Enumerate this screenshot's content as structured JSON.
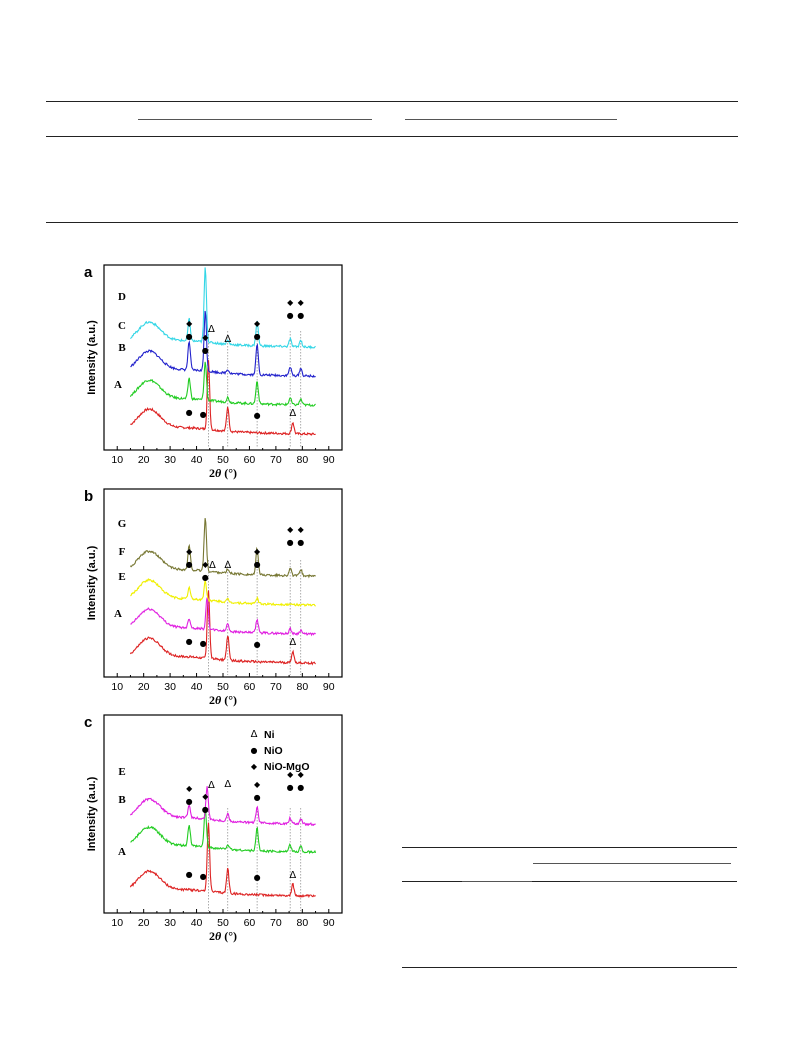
{
  "axis": {
    "ylabel": "Intensity (a.u.)",
    "xlabel_prefix": "2",
    "xlabel_theta": "θ",
    "xlabel_suffix": " (°)",
    "xticks": [
      "10",
      "20",
      "30",
      "40",
      "50",
      "60",
      "70",
      "80",
      "90"
    ]
  },
  "markers": {
    "ni": "Δ",
    "nio": "●",
    "niomgo": "◆"
  },
  "legend": {
    "ni": "Ni",
    "nio": "NiO",
    "niomgo": "NiO-MgO"
  },
  "colors": {
    "cyan": "#33d6e6",
    "blue": "#2222cc",
    "green": "#22cc22",
    "red": "#dd2222",
    "olive": "#777733",
    "yellow": "#f0f000",
    "magenta": "#e020e0"
  },
  "chart_data": [
    {
      "type": "line",
      "panel_label": "a",
      "xlabel": "2θ (°)",
      "ylabel": "Intensity (a.u.)",
      "xlim": [
        5,
        95
      ],
      "reference_lines_x": [
        44.5,
        51.8,
        62.9,
        75.4,
        79.4
      ],
      "series": [
        {
          "name": "A",
          "color": "#dd2222",
          "offset": 0,
          "peaks": [
            [
              44.5,
              7.2
            ],
            [
              51.8,
              2.6
            ],
            [
              76.4,
              1.2
            ]
          ]
        },
        {
          "name": "B",
          "color": "#22cc22",
          "offset": 1,
          "peaks": [
            [
              37.2,
              2.2
            ],
            [
              43.3,
              4.0
            ],
            [
              51.8,
              0.5
            ],
            [
              62.9,
              2.4
            ],
            [
              75.4,
              0.7
            ],
            [
              79.4,
              0.6
            ]
          ]
        },
        {
          "name": "C",
          "color": "#2222cc",
          "offset": 2,
          "peaks": [
            [
              37.2,
              3.0
            ],
            [
              43.3,
              6.4
            ],
            [
              51.8,
              0.4
            ],
            [
              62.9,
              3.2
            ],
            [
              75.4,
              0.9
            ],
            [
              79.4,
              0.8
            ]
          ]
        },
        {
          "name": "D",
          "color": "#33d6e6",
          "offset": 3,
          "peaks": [
            [
              37.2,
              2.3
            ],
            [
              43.3,
              7.8
            ],
            [
              51.8,
              0.4
            ],
            [
              62.9,
              2.6
            ],
            [
              75.4,
              0.8
            ],
            [
              79.4,
              0.7
            ]
          ]
        }
      ]
    },
    {
      "type": "line",
      "panel_label": "b",
      "xlabel": "2θ (°)",
      "ylabel": "Intensity (a.u.)",
      "xlim": [
        5,
        95
      ],
      "reference_lines_x": [
        44.5,
        51.8,
        62.9,
        75.4,
        79.4
      ],
      "series": [
        {
          "name": "A",
          "color": "#dd2222",
          "offset": 0,
          "peaks": [
            [
              44.5,
              7.2
            ],
            [
              51.8,
              2.6
            ],
            [
              76.4,
              1.2
            ]
          ]
        },
        {
          "name": "E",
          "color": "#e020e0",
          "offset": 1,
          "peaks": [
            [
              37.2,
              1.0
            ],
            [
              44.0,
              3.4
            ],
            [
              51.8,
              0.8
            ],
            [
              62.9,
              1.4
            ],
            [
              75.4,
              0.5
            ],
            [
              79.4,
              0.4
            ]
          ]
        },
        {
          "name": "F",
          "color": "#f0f000",
          "offset": 2,
          "peaks": [
            [
              37.2,
              1.2
            ],
            [
              43.3,
              2.0
            ],
            [
              51.8,
              0.3
            ],
            [
              62.9,
              0.6
            ]
          ]
        },
        {
          "name": "G",
          "color": "#777733",
          "offset": 3,
          "peaks": [
            [
              37.2,
              2.6
            ],
            [
              43.3,
              5.6
            ],
            [
              51.8,
              0.4
            ],
            [
              62.9,
              2.8
            ],
            [
              75.4,
              0.8
            ],
            [
              79.4,
              0.7
            ]
          ]
        }
      ]
    },
    {
      "type": "line",
      "panel_label": "c",
      "xlabel": "2θ (°)",
      "ylabel": "Intensity (a.u.)",
      "xlim": [
        5,
        95
      ],
      "reference_lines_x": [
        44.5,
        51.8,
        62.9,
        75.4,
        79.4
      ],
      "legend": [
        "Δ Ni",
        "● NiO",
        "◆ NiO-MgO"
      ],
      "series": [
        {
          "name": "A",
          "color": "#dd2222",
          "offset": 0,
          "peaks": [
            [
              44.5,
              7.2
            ],
            [
              51.8,
              2.6
            ],
            [
              76.4,
              1.2
            ]
          ]
        },
        {
          "name": "B",
          "color": "#22cc22",
          "offset": 2.2,
          "peaks": [
            [
              37.2,
              2.2
            ],
            [
              43.3,
              4.0
            ],
            [
              51.8,
              0.5
            ],
            [
              62.9,
              2.4
            ],
            [
              75.4,
              0.7
            ],
            [
              79.4,
              0.6
            ]
          ]
        },
        {
          "name": "E",
          "color": "#e020e0",
          "offset": 3.6,
          "peaks": [
            [
              37.2,
              1.4
            ],
            [
              44.0,
              3.4
            ],
            [
              51.8,
              0.8
            ],
            [
              62.9,
              1.6
            ],
            [
              75.4,
              0.6
            ],
            [
              79.4,
              0.5
            ]
          ]
        }
      ]
    }
  ]
}
